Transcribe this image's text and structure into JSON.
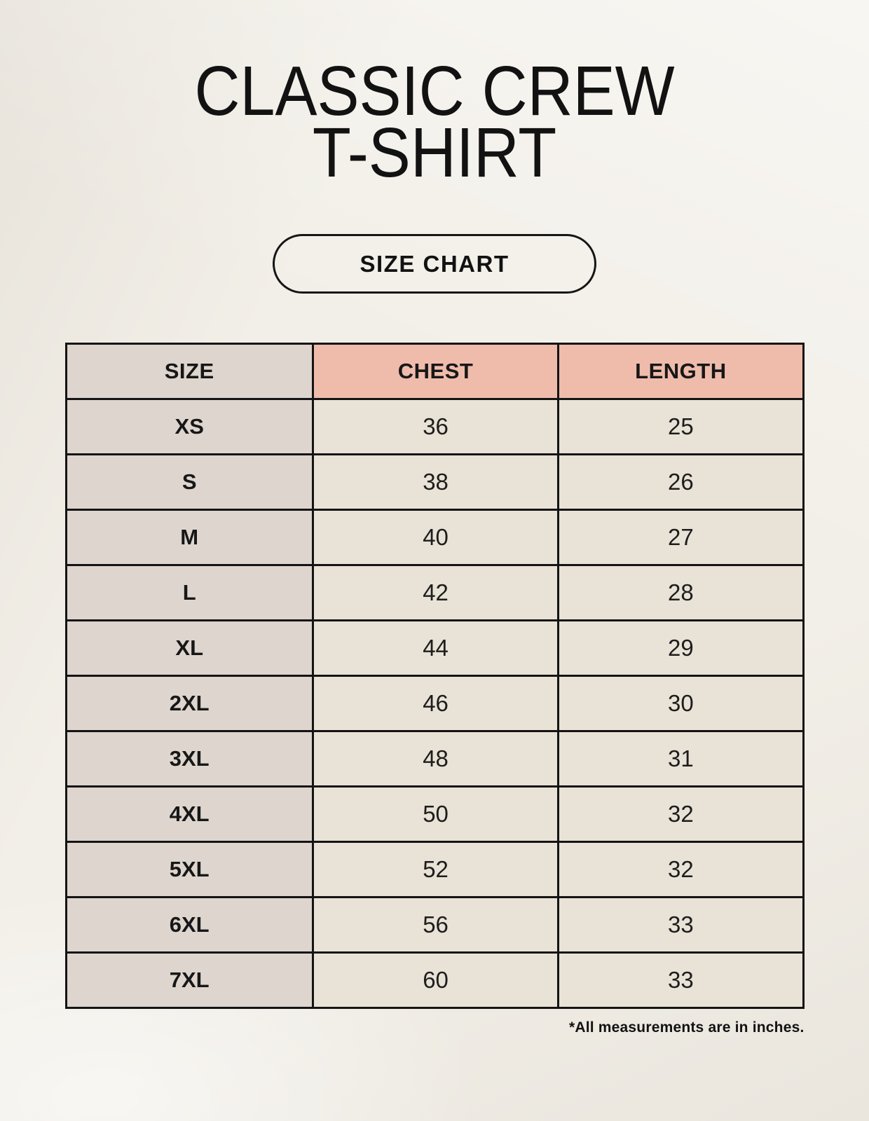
{
  "header": {
    "title_line1": "CLASSIC CREW",
    "title_line2": "T-SHIRT",
    "badge_label": "SIZE CHART"
  },
  "footnote": "*All measurements are in inches.",
  "chart_data": {
    "type": "table",
    "title": "CLASSIC CREW T-SHIRT",
    "subtitle": "SIZE CHART",
    "columns": [
      "SIZE",
      "CHEST",
      "LENGTH"
    ],
    "rows": [
      [
        "XS",
        "36",
        "25"
      ],
      [
        "S",
        "38",
        "26"
      ],
      [
        "M",
        "40",
        "27"
      ],
      [
        "L",
        "42",
        "28"
      ],
      [
        "XL",
        "44",
        "29"
      ],
      [
        "2XL",
        "46",
        "30"
      ],
      [
        "3XL",
        "48",
        "31"
      ],
      [
        "4XL",
        "50",
        "32"
      ],
      [
        "5XL",
        "52",
        "32"
      ],
      [
        "6XL",
        "56",
        "33"
      ],
      [
        "7XL",
        "60",
        "33"
      ]
    ],
    "note": "*All measurements are in inches."
  },
  "colors": {
    "page_background": "#f2efe8",
    "header_accent": "#efbcab",
    "size_column": "#ddd5ce",
    "data_cell": "#e9e2d6",
    "border": "#141414",
    "text": "#171717"
  }
}
